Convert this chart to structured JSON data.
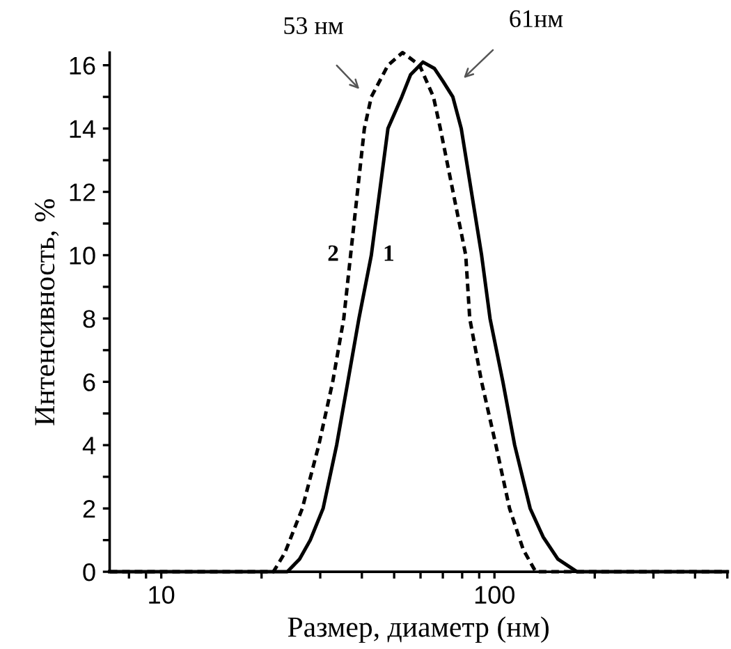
{
  "chart_data": {
    "type": "line",
    "xlabel": "Размер, диаметр (нм)",
    "ylabel": "Интенсивность, %",
    "log": "x",
    "xlim": [
      7,
      500
    ],
    "xticks": [
      {
        "value": 8,
        "label": null
      },
      {
        "value": 9,
        "label": null
      },
      10,
      {
        "value": 20,
        "label": null
      },
      {
        "value": 30,
        "label": null
      },
      {
        "value": 40,
        "label": null
      },
      {
        "value": 50,
        "label": null
      },
      {
        "value": 60,
        "label": null
      },
      {
        "value": 70,
        "label": null
      },
      {
        "value": 80,
        "label": null
      },
      {
        "value": 90,
        "label": null
      },
      100,
      {
        "value": 200,
        "label": null
      },
      {
        "value": 300,
        "label": null
      },
      {
        "value": 400,
        "label": null
      },
      {
        "value": 500,
        "label": null
      }
    ],
    "ylim": [
      0,
      16.4
    ],
    "yticks": [
      0,
      {
        "value": 1,
        "label": null
      },
      2,
      {
        "value": 3,
        "label": null
      },
      4,
      {
        "value": 5,
        "label": null
      },
      6,
      {
        "value": 7,
        "label": null
      },
      8,
      {
        "value": 9,
        "label": null
      },
      10,
      {
        "value": 11,
        "label": null
      },
      12,
      {
        "value": 13,
        "label": null
      },
      14,
      {
        "value": 15,
        "label": null
      },
      16
    ],
    "grid": false,
    "legend": false,
    "marker": "none",
    "series": [
      {
        "name": "1",
        "color": "#000000",
        "line_style": "solid",
        "x": [
          7,
          23.9,
          26,
          28,
          30.6,
          33.6,
          36.3,
          39.2,
          42.7,
          47.9,
          52.7,
          56,
          61,
          66,
          70,
          75,
          79.5,
          91.5,
          97,
          106,
          115,
          128,
          140,
          155,
          177,
          500
        ],
        "values": [
          0,
          0,
          0.4,
          1,
          2,
          4,
          6,
          8,
          10,
          14,
          15,
          15.7,
          16.1,
          15.9,
          15.5,
          15,
          14,
          10,
          8,
          6,
          4,
          2,
          1.1,
          0.4,
          0,
          0
        ]
      },
      {
        "name": "2",
        "color": "#000000",
        "line_style": "dashed",
        "x": [
          7,
          21.7,
          23.5,
          26.5,
          29.7,
          32.7,
          35.3,
          37,
          40.7,
          42.7,
          47.9,
          53,
          59.6,
          65.6,
          68.8,
          82,
          84.3,
          91.5,
          101,
          111,
          122,
          133,
          500
        ],
        "values": [
          0,
          0,
          0.6,
          2,
          4,
          6,
          8,
          10,
          14,
          15,
          16,
          16.4,
          16,
          15,
          14,
          10,
          8,
          6,
          4,
          2,
          0.7,
          0,
          0
        ]
      }
    ],
    "annotations": [
      "53 нм",
      "61нм"
    ]
  }
}
